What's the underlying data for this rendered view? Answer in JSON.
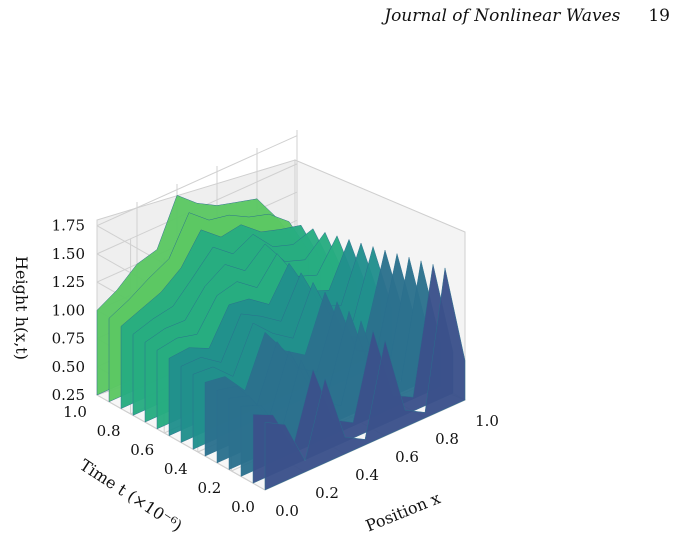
{
  "header": {
    "journal": "Journal of Nonlinear Waves",
    "page_number": "19"
  },
  "chart_data": {
    "type": "surface",
    "colormap": "viridis",
    "xlabel": "Position x",
    "ylabel": "Time t (×10⁻⁶)",
    "zlabel": "Height h(x,t)",
    "xlim": [
      0,
      1
    ],
    "ylim": [
      0,
      1
    ],
    "zlim": [
      0.25,
      1.8
    ],
    "x_ticks": [
      "0.0",
      "0.2",
      "0.4",
      "0.6",
      "0.8",
      "1.0"
    ],
    "y_ticks": [
      "0.0",
      "0.2",
      "0.4",
      "0.6",
      "0.8",
      "1.0"
    ],
    "z_ticks": [
      "0.25",
      "0.50",
      "0.75",
      "1.00",
      "1.25",
      "1.50",
      "1.75"
    ],
    "grid": true,
    "surface": {
      "description_x": [
        0.0,
        0.1,
        0.2,
        0.3,
        0.4,
        0.5,
        0.6,
        0.7,
        0.8,
        0.9,
        1.0
      ],
      "profile_at_t1": [
        1.0,
        1.1,
        1.25,
        1.3,
        1.7,
        1.55,
        1.45,
        1.4,
        1.35,
        1.1,
        0.8
      ],
      "profile_at_t0": [
        0.85,
        0.75,
        0.35,
        1.0,
        0.4,
        0.3,
        1.1,
        0.4,
        0.3,
        1.5,
        0.6
      ]
    }
  }
}
